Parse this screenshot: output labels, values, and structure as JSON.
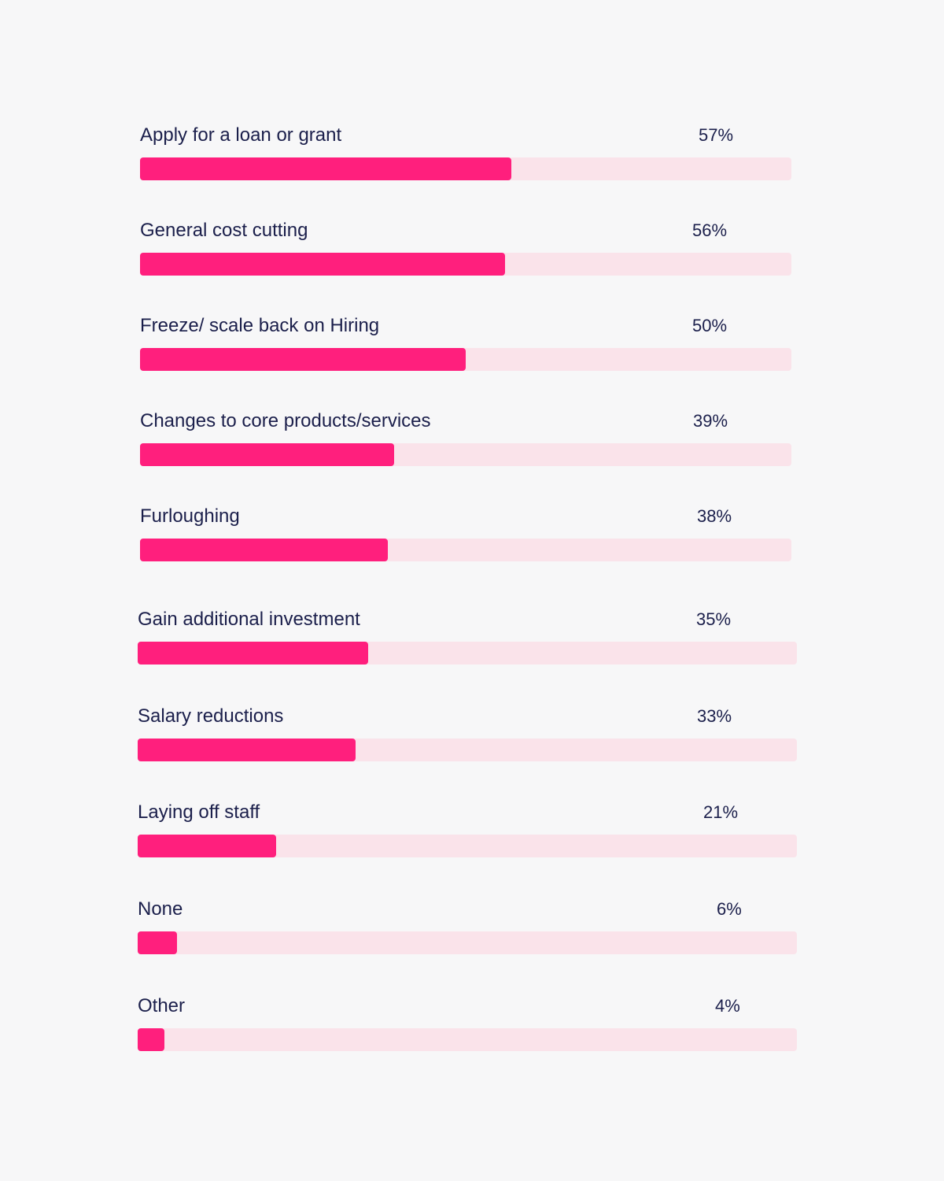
{
  "chart_data": {
    "type": "bar",
    "orientation": "horizontal",
    "categories": [
      "Apply for a loan or grant",
      "General cost cutting",
      "Freeze/ scale back on Hiring",
      "Changes to core products/services",
      "Furloughing",
      "Gain additional investment",
      "Salary reductions",
      "Laying off staff",
      "None",
      "Other"
    ],
    "values": [
      57,
      56,
      50,
      39,
      38,
      35,
      33,
      21,
      6,
      4
    ],
    "value_labels": [
      "57%",
      "56%",
      "50%",
      "39%",
      "38%",
      "35%",
      "33%",
      "21%",
      "6%",
      "4%"
    ],
    "title": "",
    "xlabel": "",
    "ylabel": "",
    "xlim": [
      0,
      100
    ],
    "grid": false,
    "legend": "none"
  },
  "colors": {
    "bar_fill": "#ff1f7d",
    "bar_track": "#fae3ea",
    "text": "#1b1f4b",
    "background": "#f7f7f8"
  }
}
